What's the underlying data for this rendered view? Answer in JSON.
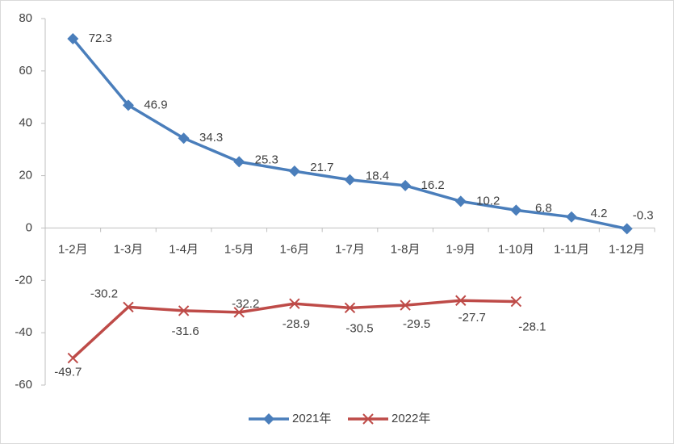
{
  "chart_data": {
    "type": "line",
    "categories": [
      "1-2月",
      "1-3月",
      "1-4月",
      "1-5月",
      "1-6月",
      "1-7月",
      "1-8月",
      "1-9月",
      "1-10月",
      "1-11月",
      "1-12月"
    ],
    "series": [
      {
        "name": "2021年",
        "color": "#4a7ebb",
        "marker": "diamond",
        "values": [
          72.3,
          46.9,
          34.3,
          25.3,
          21.7,
          18.4,
          16.2,
          10.2,
          6.8,
          4.2,
          -0.3
        ]
      },
      {
        "name": "2022年",
        "color": "#be4b48",
        "marker": "x",
        "values": [
          -49.7,
          -30.2,
          -31.6,
          -32.2,
          -28.9,
          -30.5,
          -29.5,
          -27.7,
          -28.1,
          null,
          null
        ]
      }
    ],
    "ylim": [
      -60,
      80
    ],
    "yticks": [
      -60,
      -40,
      -20,
      0,
      20,
      40,
      60,
      80
    ],
    "grid": false,
    "legend": "bottom"
  }
}
